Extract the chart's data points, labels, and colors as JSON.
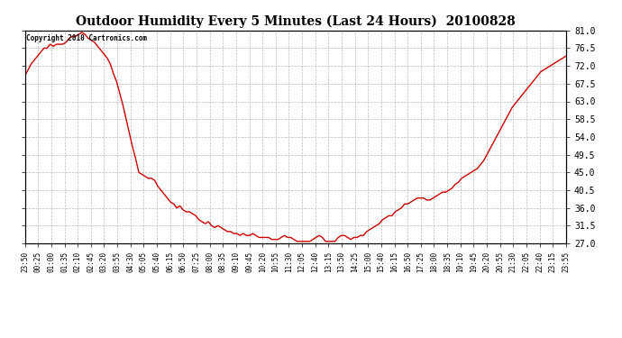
{
  "title": "Outdoor Humidity Every 5 Minutes (Last 24 Hours)  20100828",
  "copyright": "Copyright 2010 Cartronics.com",
  "line_color": "#cc0000",
  "bg_color": "#ffffff",
  "grid_color": "#bbbbbb",
  "ylim": [
    27.0,
    81.0
  ],
  "yticks": [
    27.0,
    31.5,
    36.0,
    40.5,
    45.0,
    49.5,
    54.0,
    58.5,
    63.0,
    67.5,
    72.0,
    76.5,
    81.0
  ],
  "xtick_labels": [
    "23:50",
    "00:25",
    "01:00",
    "01:35",
    "02:10",
    "02:45",
    "03:20",
    "03:55",
    "04:30",
    "05:05",
    "05:40",
    "06:15",
    "06:50",
    "07:25",
    "08:00",
    "08:35",
    "09:10",
    "09:45",
    "10:20",
    "10:55",
    "11:30",
    "12:05",
    "12:40",
    "13:15",
    "13:50",
    "14:25",
    "15:00",
    "15:40",
    "16:15",
    "16:50",
    "17:25",
    "18:00",
    "18:35",
    "19:10",
    "19:45",
    "20:20",
    "20:55",
    "21:30",
    "22:05",
    "22:40",
    "23:15",
    "23:55"
  ],
  "humidity_data": [
    69.5,
    71.0,
    72.5,
    73.5,
    74.5,
    75.5,
    76.5,
    76.5,
    77.5,
    77.0,
    77.5,
    77.5,
    77.5,
    78.0,
    79.0,
    79.5,
    79.5,
    80.0,
    80.5,
    80.0,
    79.0,
    78.5,
    78.0,
    77.0,
    76.0,
    75.0,
    74.0,
    72.5,
    70.0,
    68.0,
    65.0,
    62.0,
    58.5,
    55.0,
    51.5,
    48.5,
    45.0,
    44.5,
    44.0,
    43.5,
    43.5,
    43.0,
    41.5,
    40.5,
    39.5,
    38.5,
    37.5,
    37.0,
    36.0,
    36.5,
    35.5,
    35.0,
    35.0,
    34.5,
    34.0,
    33.0,
    32.5,
    32.0,
    32.5,
    31.5,
    31.0,
    31.5,
    31.0,
    30.5,
    30.0,
    30.0,
    29.5,
    29.5,
    29.0,
    29.5,
    29.0,
    29.0,
    29.5,
    29.0,
    28.5,
    28.5,
    28.5,
    28.5,
    28.0,
    28.0,
    28.0,
    28.5,
    29.0,
    28.5,
    28.5,
    28.0,
    27.5,
    27.5,
    27.5,
    27.5,
    27.5,
    28.0,
    28.5,
    29.0,
    28.5,
    27.5,
    27.5,
    27.5,
    27.5,
    28.5,
    29.0,
    29.0,
    28.5,
    28.0,
    28.5,
    28.5,
    29.0,
    29.0,
    30.0,
    30.5,
    31.0,
    31.5,
    32.0,
    33.0,
    33.5,
    34.0,
    34.0,
    35.0,
    35.5,
    36.0,
    37.0,
    37.0,
    37.5,
    38.0,
    38.5,
    38.5,
    38.5,
    38.0,
    38.0,
    38.5,
    39.0,
    39.5,
    40.0,
    40.0,
    40.5,
    41.0,
    42.0,
    42.5,
    43.5,
    44.0,
    44.5,
    45.0,
    45.5,
    46.0,
    47.0,
    48.0,
    49.5,
    51.0,
    52.5,
    54.0,
    55.5,
    57.0,
    58.5,
    60.0,
    61.5,
    62.5,
    63.5,
    64.5,
    65.5,
    66.5,
    67.5,
    68.5,
    69.5,
    70.5,
    71.0,
    71.5,
    72.0,
    72.5,
    73.0,
    73.5,
    74.0,
    74.5
  ]
}
